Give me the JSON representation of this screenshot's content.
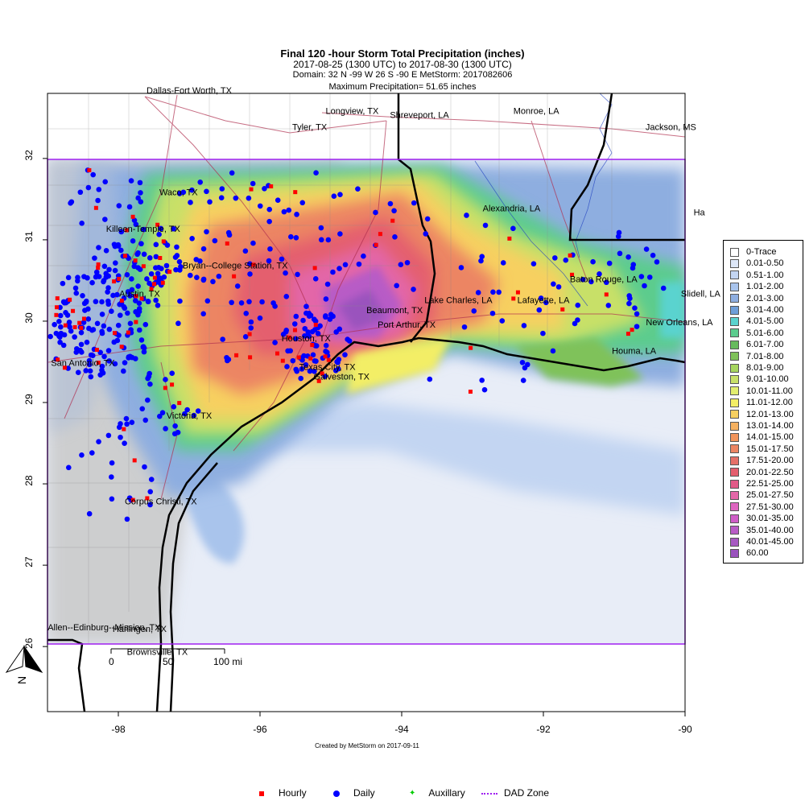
{
  "header": {
    "title": "Final 120 -hour Storm Total Precipitation (inches)",
    "period": "2017-08-25 (1300 UTC) to 2017-08-30 (1300 UTC)",
    "domain": "Domain: 32 N -99 W 26 S -90 E MetStorm: 2017082606",
    "max_precip": "Maximum Precipitation= 51.65 inches"
  },
  "axes": {
    "x_ticks": [
      "-98",
      "-96",
      "-94",
      "-92",
      "-90"
    ],
    "y_ticks": [
      "32",
      "31",
      "30",
      "29",
      "28",
      "27",
      "26"
    ],
    "lon_range": [
      -99,
      -90
    ],
    "lat_range": [
      25.2,
      32.8
    ]
  },
  "dad_zone": {
    "lat_n": 32,
    "lat_s": 26,
    "lon_w": -99,
    "lon_e": -90,
    "color": "#a020f0"
  },
  "cities": [
    {
      "name": "Dallas-Fort Worth, TX",
      "lon": -97.0,
      "lat": 32.8
    },
    {
      "name": "Longview, TX",
      "lon": -94.7,
      "lat": 32.55
    },
    {
      "name": "Shreveport, LA",
      "lon": -93.75,
      "lat": 32.5
    },
    {
      "name": "Monroe, LA",
      "lon": -92.1,
      "lat": 32.55
    },
    {
      "name": "Tyler, TX",
      "lon": -95.3,
      "lat": 32.35
    },
    {
      "name": "Jackson, MS",
      "lon": -90.2,
      "lat": 32.35
    },
    {
      "name": "Waco, TX",
      "lon": -97.15,
      "lat": 31.55
    },
    {
      "name": "Alexandria, LA",
      "lon": -92.45,
      "lat": 31.35
    },
    {
      "name": "Killeen-Temple, TX",
      "lon": -97.65,
      "lat": 31.1
    },
    {
      "name": "Bryan--College Station, TX",
      "lon": -96.35,
      "lat": 30.65
    },
    {
      "name": "Baton Rouge, LA",
      "lon": -91.15,
      "lat": 30.48
    },
    {
      "name": "Austin, TX",
      "lon": -97.7,
      "lat": 30.3
    },
    {
      "name": "Slidell, LA",
      "lon": -89.78,
      "lat": 30.3
    },
    {
      "name": "Lake Charles, LA",
      "lon": -93.2,
      "lat": 30.22
    },
    {
      "name": "Lafayette, LA",
      "lon": -92.0,
      "lat": 30.22
    },
    {
      "name": "Beaumont, TX",
      "lon": -94.1,
      "lat": 30.1
    },
    {
      "name": "Port Arthur, TX",
      "lon": -93.93,
      "lat": 29.92
    },
    {
      "name": "New Orleans, LA",
      "lon": -90.08,
      "lat": 29.95
    },
    {
      "name": "Houston, TX",
      "lon": -95.35,
      "lat": 29.75
    },
    {
      "name": "Houma, LA",
      "lon": -90.72,
      "lat": 29.6
    },
    {
      "name": "San Antonio, TX",
      "lon": -98.5,
      "lat": 29.45
    },
    {
      "name": "Texas City, TX",
      "lon": -95.05,
      "lat": 29.4
    },
    {
      "name": "Galveston, TX",
      "lon": -94.85,
      "lat": 29.28
    },
    {
      "name": "Victoria, TX",
      "lon": -97.0,
      "lat": 28.8
    },
    {
      "name": "Corpus Christi, TX",
      "lon": -97.4,
      "lat": 27.75
    },
    {
      "name": "Allen--Edinburg--Mission, TX",
      "lon": -98.2,
      "lat": 26.2
    },
    {
      "name": "Harlingen, TX",
      "lon": -97.7,
      "lat": 26.18
    },
    {
      "name": "Brownsville, TX",
      "lon": -97.45,
      "lat": 25.9
    },
    {
      "name": "Ha",
      "lon": -89.8,
      "lat": 31.3
    }
  ],
  "scale_bar": {
    "labels": [
      "0",
      "50",
      "100 mi"
    ]
  },
  "north_arrow": {
    "label": "N"
  },
  "legend": [
    {
      "label": "0-Trace",
      "color": "#ffffff"
    },
    {
      "label": "0.01-0.50",
      "color": "#dce6f7"
    },
    {
      "label": "0.51-1.00",
      "color": "#c3d5f2"
    },
    {
      "label": "1.01-2.00",
      "color": "#a9c4ec"
    },
    {
      "label": "2.01-3.00",
      "color": "#8eaee0"
    },
    {
      "label": "3.01-4.00",
      "color": "#6f9ed8"
    },
    {
      "label": "4.01-5.00",
      "color": "#5ad3cf"
    },
    {
      "label": "5.01-6.00",
      "color": "#5ccc8e"
    },
    {
      "label": "6.01-7.00",
      "color": "#66bb5d"
    },
    {
      "label": "7.01-8.00",
      "color": "#7fc25a"
    },
    {
      "label": "8.01-9.00",
      "color": "#a6d55e"
    },
    {
      "label": "9.01-10.00",
      "color": "#c8e068"
    },
    {
      "label": "10.01-11.00",
      "color": "#e2ee6f"
    },
    {
      "label": "11.01-12.00",
      "color": "#f3ee66"
    },
    {
      "label": "12.01-13.00",
      "color": "#f7d060"
    },
    {
      "label": "13.01-14.00",
      "color": "#f6b15f"
    },
    {
      "label": "14.01-15.00",
      "color": "#f2955c"
    },
    {
      "label": "15.01-17.50",
      "color": "#ec8563"
    },
    {
      "label": "17.51-20.00",
      "color": "#e57068"
    },
    {
      "label": "20.01-22.50",
      "color": "#e45e6e"
    },
    {
      "label": "22.51-25.00",
      "color": "#e25b88"
    },
    {
      "label": "25.01-27.50",
      "color": "#e366a8"
    },
    {
      "label": "27.51-30.00",
      "color": "#de66c0"
    },
    {
      "label": "30.01-35.00",
      "color": "#cf5ec7"
    },
    {
      "label": "35.01-40.00",
      "color": "#b85cc6"
    },
    {
      "label": "40.01-45.00",
      "color": "#a75ac2"
    },
    {
      "label": "60.00",
      "color": "#9a52bd"
    }
  ],
  "credit": "Created by MetStorm on 2017-09-11",
  "station_legend": {
    "hourly": {
      "label": "Hourly",
      "color": "#ff0000"
    },
    "daily": {
      "label": "Daily",
      "color": "#0000ff"
    },
    "auxillary": {
      "label": "Auxillary",
      "color": "#00cc00"
    },
    "dad": {
      "label": "DAD Zone",
      "color": "#a020f0"
    }
  }
}
